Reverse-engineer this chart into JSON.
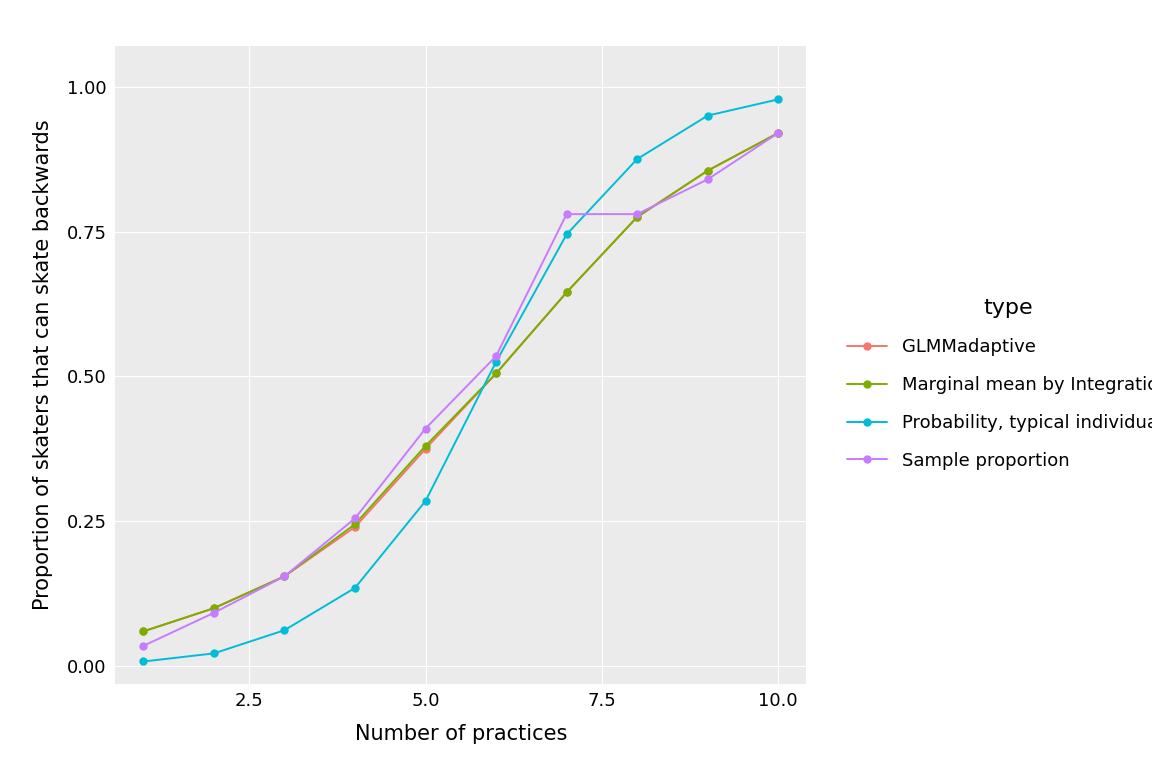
{
  "x": [
    1,
    2,
    3,
    4,
    5,
    6,
    7,
    8,
    9,
    10
  ],
  "glmmadaptive": [
    0.06,
    0.1,
    0.155,
    0.24,
    0.375,
    0.505,
    0.645,
    0.775,
    0.855,
    0.92
  ],
  "marginal_integration": [
    0.06,
    0.1,
    0.155,
    0.245,
    0.38,
    0.505,
    0.645,
    0.775,
    0.855,
    0.92
  ],
  "typical_individual": [
    0.008,
    0.022,
    0.062,
    0.135,
    0.285,
    0.525,
    0.745,
    0.875,
    0.95,
    0.978
  ],
  "sample_proportion": [
    0.035,
    0.092,
    0.155,
    0.255,
    0.41,
    0.535,
    0.78,
    0.78,
    0.84,
    0.92
  ],
  "colors": {
    "glmmadaptive": "#F8766D",
    "marginal_integration": "#7CAE00",
    "typical_individual": "#00BCD8",
    "sample_proportion": "#C77CFF"
  },
  "legend_labels": {
    "glmmadaptive": "GLMMadaptive",
    "marginal_integration": "Marginal mean by Integration",
    "typical_individual": "Probability, typical individual",
    "sample_proportion": "Sample proportion"
  },
  "xlabel": "Number of practices",
  "ylabel": "Proportion of skaters that can skate backwards",
  "legend_title": "type",
  "xlim": [
    0.6,
    10.4
  ],
  "ylim": [
    -0.03,
    1.07
  ],
  "xticks": [
    2.5,
    5.0,
    7.5,
    10.0
  ],
  "yticks": [
    0.0,
    0.25,
    0.5,
    0.75,
    1.0
  ],
  "background_color": "#FFFFFF",
  "panel_background": "#EBEBEB",
  "grid_color": "#FFFFFF"
}
